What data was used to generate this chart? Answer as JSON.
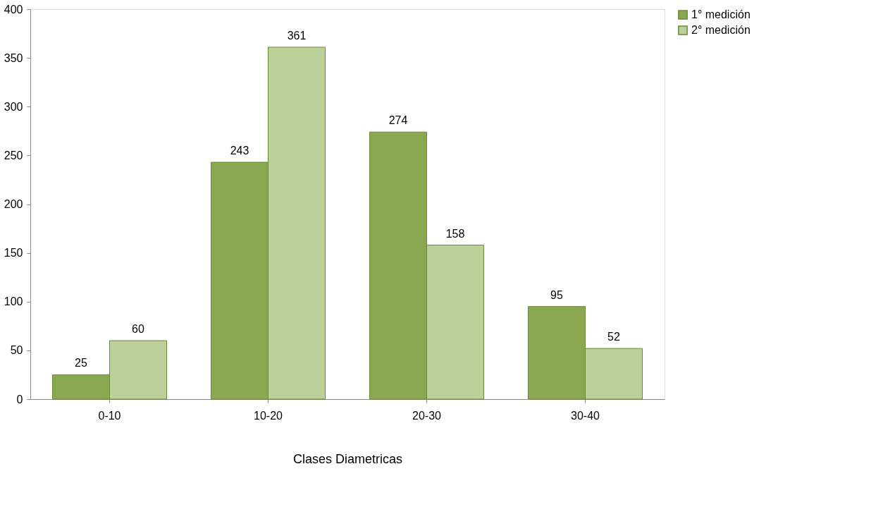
{
  "chart_data": {
    "type": "bar",
    "xlabel": "Clases Diametricas",
    "categories": [
      "0-10",
      "10-20",
      "20-30",
      "30-40"
    ],
    "series": [
      {
        "name": "1° medición",
        "color": "#8aa84f",
        "values": [
          25,
          243,
          274,
          95
        ]
      },
      {
        "name": "2° medición",
        "color": "#bcd19a",
        "values": [
          60,
          361,
          158,
          52
        ]
      }
    ],
    "ylim": [
      0,
      400
    ],
    "yticks": [
      0,
      50,
      100,
      150,
      200,
      250,
      300,
      350,
      400
    ],
    "grid": false,
    "legend": "right",
    "data_labels": true
  }
}
